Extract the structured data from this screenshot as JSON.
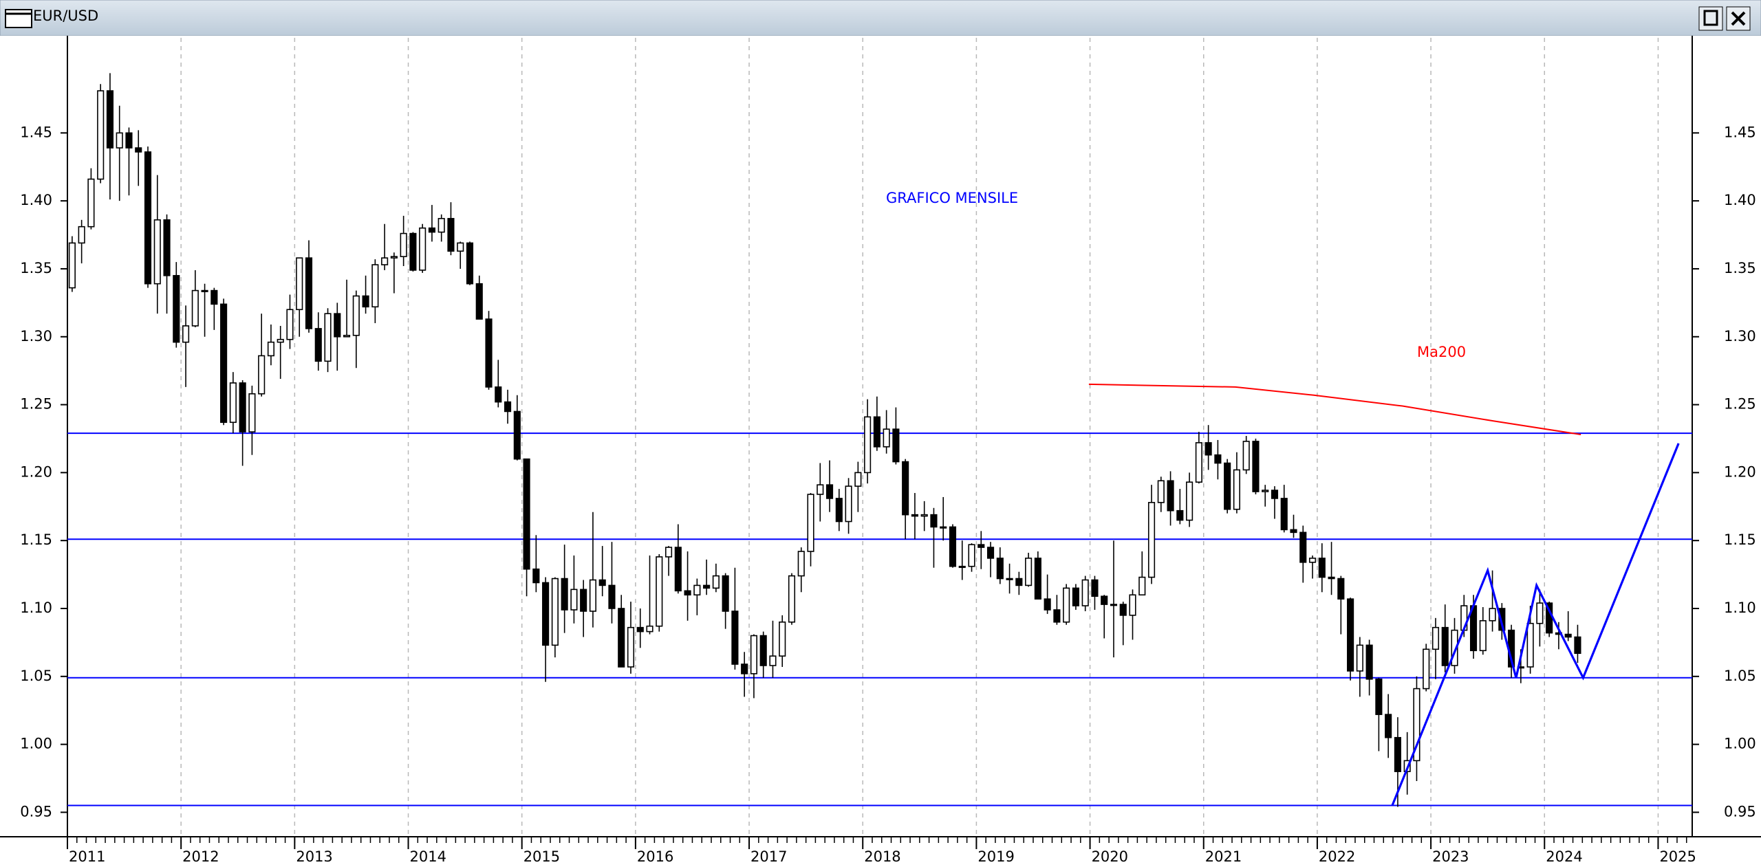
{
  "chart_data": {
    "type": "candlestick",
    "title": "EUR/USD",
    "annotation": "GRAFICO MENSILE",
    "up_color": "#ffffff",
    "down_color": "#000000",
    "xlim": [
      2011,
      2025.3
    ],
    "xticks": [
      2011,
      2012,
      2013,
      2014,
      2015,
      2016,
      2017,
      2018,
      2019,
      2020,
      2021,
      2022,
      2023,
      2024,
      2025
    ],
    "ylim": [
      0.932,
      1.52
    ],
    "yticks": [
      0.95,
      {
        "value": 1,
        "label": "1.00"
      },
      1.05,
      {
        "value": 1.1,
        "label": "1.10"
      },
      1.15,
      {
        "value": 1.2,
        "label": "1.20"
      },
      1.25,
      {
        "value": 1.3,
        "label": "1.30"
      },
      1.35,
      {
        "value": 1.4,
        "label": "1.40"
      },
      1.45
    ],
    "grid": true,
    "hlines": {
      "color": "#0000ff",
      "values": [
        1.229,
        1.151,
        1.049,
        0.955
      ]
    },
    "series": [
      {
        "name": "Ma200",
        "color": "#ff0000",
        "x": [
          2019.99,
          2021.28,
          2021.97,
          2022.75,
          2023.55,
          2024.32
        ],
        "values": [
          1.265,
          1.263,
          1.257,
          1.249,
          1.238,
          1.228
        ]
      },
      {
        "color": "#0000ff",
        "x": [
          2022.66,
          2023.5,
          2023.75,
          2023.93,
          2024.34,
          2025.18
        ],
        "values": [
          0.955,
          1.128,
          1.049,
          1.117,
          1.049,
          1.2215
        ]
      }
    ],
    "candles": [
      [
        1.336,
        1.374,
        1.333,
        1.369
      ],
      [
        1.369,
        1.386,
        1.354,
        1.381
      ],
      [
        1.381,
        1.424,
        1.379,
        1.416
      ],
      [
        1.416,
        1.486,
        1.413,
        1.481
      ],
      [
        1.481,
        1.494,
        1.401,
        1.439
      ],
      [
        1.439,
        1.47,
        1.4,
        1.45
      ],
      [
        1.45,
        1.454,
        1.404,
        1.439
      ],
      [
        1.439,
        1.452,
        1.411,
        1.436
      ],
      [
        1.436,
        1.44,
        1.336,
        1.339
      ],
      [
        1.339,
        1.419,
        1.317,
        1.386
      ],
      [
        1.386,
        1.39,
        1.317,
        1.345
      ],
      [
        1.345,
        1.355,
        1.292,
        1.296
      ],
      [
        1.296,
        1.323,
        1.263,
        1.308
      ],
      [
        1.308,
        1.349,
        1.307,
        1.334
      ],
      [
        1.334,
        1.339,
        1.3,
        1.334
      ],
      [
        1.334,
        1.336,
        1.305,
        1.324
      ],
      [
        1.324,
        1.328,
        1.235,
        1.237
      ],
      [
        1.237,
        1.274,
        1.229,
        1.266
      ],
      [
        1.266,
        1.268,
        1.205,
        1.23
      ],
      [
        1.23,
        1.264,
        1.213,
        1.258
      ],
      [
        1.258,
        1.317,
        1.256,
        1.286
      ],
      [
        1.286,
        1.309,
        1.279,
        1.296
      ],
      [
        1.296,
        1.308,
        1.269,
        1.298
      ],
      [
        1.298,
        1.331,
        1.291,
        1.32
      ],
      [
        1.32,
        1.358,
        1.3,
        1.358
      ],
      [
        1.358,
        1.371,
        1.303,
        1.306
      ],
      [
        1.306,
        1.318,
        1.275,
        1.282
      ],
      [
        1.282,
        1.321,
        1.274,
        1.317
      ],
      [
        1.317,
        1.325,
        1.275,
        1.3
      ],
      [
        1.3,
        1.342,
        1.3,
        1.301
      ],
      [
        1.301,
        1.334,
        1.277,
        1.33
      ],
      [
        1.33,
        1.345,
        1.317,
        1.322
      ],
      [
        1.322,
        1.357,
        1.31,
        1.353
      ],
      [
        1.353,
        1.383,
        1.349,
        1.358
      ],
      [
        1.358,
        1.362,
        1.332,
        1.359
      ],
      [
        1.359,
        1.389,
        1.352,
        1.376
      ],
      [
        1.376,
        1.377,
        1.348,
        1.349
      ],
      [
        1.349,
        1.383,
        1.347,
        1.38
      ],
      [
        1.38,
        1.397,
        1.37,
        1.377
      ],
      [
        1.377,
        1.39,
        1.37,
        1.387
      ],
      [
        1.387,
        1.399,
        1.36,
        1.363
      ],
      [
        1.363,
        1.37,
        1.35,
        1.369
      ],
      [
        1.369,
        1.37,
        1.338,
        1.339
      ],
      [
        1.339,
        1.345,
        1.313,
        1.313
      ],
      [
        1.313,
        1.319,
        1.261,
        1.263
      ],
      [
        1.263,
        1.283,
        1.248,
        1.252
      ],
      [
        1.252,
        1.261,
        1.236,
        1.245
      ],
      [
        1.245,
        1.257,
        1.209,
        1.21
      ],
      [
        1.21,
        1.21,
        1.109,
        1.129
      ],
      [
        1.129,
        1.154,
        1.112,
        1.119
      ],
      [
        1.119,
        1.123,
        1.046,
        1.073
      ],
      [
        1.073,
        1.123,
        1.064,
        1.122
      ],
      [
        1.122,
        1.147,
        1.082,
        1.099
      ],
      [
        1.099,
        1.139,
        1.089,
        1.114
      ],
      [
        1.114,
        1.121,
        1.079,
        1.098
      ],
      [
        1.098,
        1.171,
        1.086,
        1.121
      ],
      [
        1.121,
        1.146,
        1.109,
        1.117
      ],
      [
        1.117,
        1.149,
        1.089,
        1.1
      ],
      [
        1.1,
        1.11,
        1.057,
        1.057
      ],
      [
        1.057,
        1.105,
        1.052,
        1.086
      ],
      [
        1.086,
        1.1,
        1.071,
        1.083
      ],
      [
        1.083,
        1.139,
        1.081,
        1.087
      ],
      [
        1.087,
        1.14,
        1.083,
        1.138
      ],
      [
        1.138,
        1.146,
        1.124,
        1.145
      ],
      [
        1.145,
        1.162,
        1.111,
        1.113
      ],
      [
        1.113,
        1.142,
        1.091,
        1.11
      ],
      [
        1.11,
        1.122,
        1.095,
        1.117
      ],
      [
        1.117,
        1.136,
        1.11,
        1.115
      ],
      [
        1.115,
        1.133,
        1.112,
        1.124
      ],
      [
        1.124,
        1.126,
        1.085,
        1.098
      ],
      [
        1.098,
        1.13,
        1.055,
        1.059
      ],
      [
        1.059,
        1.068,
        1.035,
        1.052
      ],
      [
        1.052,
        1.081,
        1.034,
        1.08
      ],
      [
        1.08,
        1.083,
        1.049,
        1.058
      ],
      [
        1.058,
        1.091,
        1.049,
        1.065
      ],
      [
        1.065,
        1.095,
        1.057,
        1.09
      ],
      [
        1.09,
        1.126,
        1.088,
        1.124
      ],
      [
        1.124,
        1.145,
        1.112,
        1.142
      ],
      [
        1.142,
        1.185,
        1.131,
        1.184
      ],
      [
        1.184,
        1.207,
        1.164,
        1.191
      ],
      [
        1.191,
        1.209,
        1.171,
        1.181
      ],
      [
        1.181,
        1.188,
        1.157,
        1.164
      ],
      [
        1.164,
        1.196,
        1.155,
        1.19
      ],
      [
        1.19,
        1.208,
        1.171,
        1.2
      ],
      [
        1.2,
        1.254,
        1.192,
        1.241
      ],
      [
        1.241,
        1.256,
        1.216,
        1.219
      ],
      [
        1.219,
        1.246,
        1.214,
        1.232
      ],
      [
        1.232,
        1.248,
        1.206,
        1.208
      ],
      [
        1.208,
        1.21,
        1.151,
        1.169
      ],
      [
        1.169,
        1.185,
        1.151,
        1.168
      ],
      [
        1.168,
        1.179,
        1.157,
        1.169
      ],
      [
        1.169,
        1.174,
        1.13,
        1.16
      ],
      [
        1.16,
        1.182,
        1.15,
        1.16
      ],
      [
        1.16,
        1.162,
        1.13,
        1.131
      ],
      [
        1.131,
        1.15,
        1.121,
        1.131
      ],
      [
        1.131,
        1.148,
        1.127,
        1.147
      ],
      [
        1.147,
        1.157,
        1.129,
        1.145
      ],
      [
        1.145,
        1.149,
        1.123,
        1.137
      ],
      [
        1.137,
        1.145,
        1.118,
        1.122
      ],
      [
        1.122,
        1.133,
        1.111,
        1.122
      ],
      [
        1.122,
        1.127,
        1.11,
        1.117
      ],
      [
        1.117,
        1.141,
        1.116,
        1.137
      ],
      [
        1.137,
        1.142,
        1.107,
        1.107
      ],
      [
        1.107,
        1.125,
        1.096,
        1.099
      ],
      [
        1.099,
        1.11,
        1.088,
        1.09
      ],
      [
        1.09,
        1.118,
        1.088,
        1.115
      ],
      [
        1.115,
        1.118,
        1.099,
        1.102
      ],
      [
        1.102,
        1.124,
        1.098,
        1.121
      ],
      [
        1.121,
        1.124,
        1.099,
        1.109
      ],
      [
        1.109,
        1.11,
        1.078,
        1.103
      ],
      [
        1.103,
        1.15,
        1.064,
        1.103
      ],
      [
        1.103,
        1.105,
        1.073,
        1.095
      ],
      [
        1.095,
        1.114,
        1.077,
        1.11
      ],
      [
        1.11,
        1.142,
        1.11,
        1.123
      ],
      [
        1.123,
        1.191,
        1.118,
        1.178
      ],
      [
        1.178,
        1.197,
        1.171,
        1.194
      ],
      [
        1.194,
        1.201,
        1.161,
        1.172
      ],
      [
        1.172,
        1.188,
        1.162,
        1.165
      ],
      [
        1.165,
        1.2,
        1.16,
        1.193
      ],
      [
        1.193,
        1.23,
        1.192,
        1.222
      ],
      [
        1.222,
        1.235,
        1.202,
        1.213
      ],
      [
        1.213,
        1.224,
        1.195,
        1.207
      ],
      [
        1.207,
        1.21,
        1.17,
        1.173
      ],
      [
        1.173,
        1.215,
        1.17,
        1.202
      ],
      [
        1.202,
        1.227,
        1.199,
        1.223
      ],
      [
        1.223,
        1.225,
        1.184,
        1.186
      ],
      [
        1.186,
        1.191,
        1.175,
        1.187
      ],
      [
        1.187,
        1.19,
        1.166,
        1.181
      ],
      [
        1.181,
        1.191,
        1.156,
        1.158
      ],
      [
        1.158,
        1.169,
        1.152,
        1.156
      ],
      [
        1.156,
        1.161,
        1.119,
        1.134
      ],
      [
        1.134,
        1.139,
        1.122,
        1.137
      ],
      [
        1.137,
        1.148,
        1.112,
        1.123
      ],
      [
        1.123,
        1.149,
        1.11,
        1.122
      ],
      [
        1.122,
        1.124,
        1.081,
        1.107
      ],
      [
        1.107,
        1.108,
        1.047,
        1.054
      ],
      [
        1.054,
        1.079,
        1.035,
        1.073
      ],
      [
        1.073,
        1.077,
        1.036,
        1.048
      ],
      [
        1.048,
        1.049,
        0.995,
        1.022
      ],
      [
        1.022,
        1.037,
        0.99,
        1.005
      ],
      [
        1.005,
        1.02,
        0.954,
        0.98
      ],
      [
        0.98,
        1.009,
        0.963,
        0.988
      ],
      [
        0.988,
        1.05,
        0.973,
        1.041
      ],
      [
        1.041,
        1.074,
        1.039,
        1.07
      ],
      [
        1.07,
        1.093,
        1.048,
        1.086
      ],
      [
        1.086,
        1.103,
        1.053,
        1.058
      ],
      [
        1.058,
        1.093,
        1.052,
        1.084
      ],
      [
        1.084,
        1.11,
        1.079,
        1.102
      ],
      [
        1.102,
        1.11,
        1.063,
        1.069
      ],
      [
        1.069,
        1.101,
        1.066,
        1.091
      ],
      [
        1.091,
        1.128,
        1.083,
        1.1
      ],
      [
        1.1,
        1.104,
        1.077,
        1.084
      ],
      [
        1.084,
        1.088,
        1.049,
        1.057
      ],
      [
        1.057,
        1.07,
        1.045,
        1.057
      ],
      [
        1.057,
        1.102,
        1.052,
        1.089
      ],
      [
        1.089,
        1.114,
        1.072,
        1.104
      ],
      [
        1.104,
        1.105,
        1.079,
        1.082
      ],
      [
        1.082,
        1.09,
        1.07,
        1.081
      ],
      [
        1.081,
        1.098,
        1.076,
        1.079
      ],
      [
        1.079,
        1.088,
        1.06,
        1.067
      ]
    ]
  }
}
